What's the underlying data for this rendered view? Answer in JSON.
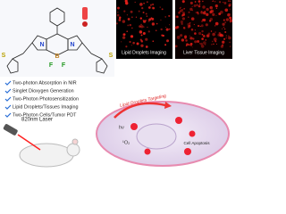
{
  "molecule": {
    "atoms": [
      "N",
      "N",
      "B",
      "F",
      "F",
      "S",
      "S"
    ]
  },
  "images": [
    {
      "caption": "Lipid Droplets Imaging"
    },
    {
      "caption": "Liver Tissue Imaging"
    }
  ],
  "features": [
    "Two-photon Absorption in NIR",
    "Singlet Dioxygen Generation",
    "Two-Photon Photosensitization",
    "Lipid Droplets/Tissues Imaging",
    "Two-Photon Cells/Tumor PDT"
  ],
  "laser": {
    "label": "820nm Laser"
  },
  "cell": {
    "targeting": "Lipid Droplets Targeting",
    "apoptosis": "Cell Apoptosis",
    "excitation": "hν",
    "singlet_oxygen": "¹O₂"
  }
}
